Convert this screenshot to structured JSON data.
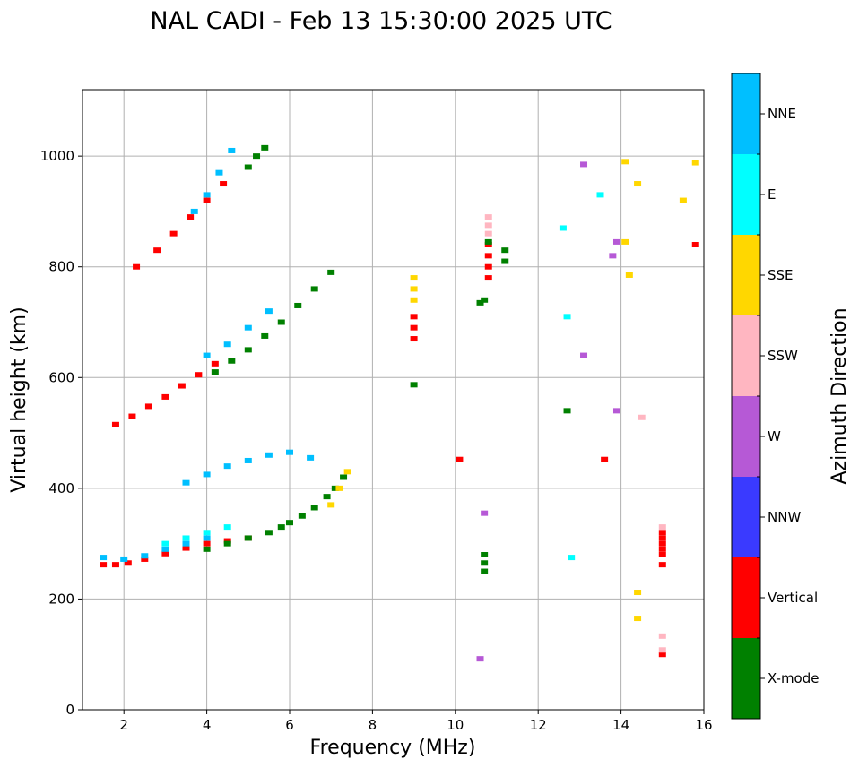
{
  "chart_data": {
    "type": "scatter",
    "title": "NAL CADI - Feb 13 15:30:00 2025 UTC",
    "xlabel": "Frequency (MHz)",
    "ylabel": "Virtual height (km)",
    "xlim": [
      1,
      16
    ],
    "ylim": [
      0,
      1120
    ],
    "xticks": [
      2,
      4,
      6,
      8,
      10,
      12,
      14,
      16
    ],
    "yticks": [
      0,
      200,
      400,
      600,
      800,
      1000
    ],
    "grid": true,
    "colorbar": {
      "label": "Azimuth Direction",
      "categories": [
        {
          "name": "X-mode",
          "color": "#008000"
        },
        {
          "name": "Vertical",
          "color": "#ff0000"
        },
        {
          "name": "NNW",
          "color": "#3a3aff"
        },
        {
          "name": "W",
          "color": "#b659d6"
        },
        {
          "name": "SSW",
          "color": "#ffb6c1"
        },
        {
          "name": "SSE",
          "color": "#ffd700"
        },
        {
          "name": "E",
          "color": "#00ffff"
        },
        {
          "name": "NNE",
          "color": "#00bfff"
        }
      ]
    },
    "traces": [
      {
        "direction": "Vertical",
        "x": [
          1.5,
          1.8,
          2.1,
          2.5,
          3.0,
          3.5,
          4.0,
          4.5,
          5.0
        ],
        "y": [
          262,
          262,
          265,
          272,
          282,
          292,
          300,
          305,
          310
        ]
      },
      {
        "direction": "X-mode",
        "x": [
          4.0,
          4.5,
          5.0,
          5.5,
          5.8,
          6.0,
          6.3,
          6.6,
          6.9,
          7.1,
          7.3
        ],
        "y": [
          290,
          300,
          310,
          320,
          330,
          338,
          350,
          365,
          385,
          400,
          420
        ]
      },
      {
        "direction": "NNE",
        "x": [
          1.5,
          2.0,
          2.5,
          3.0,
          3.5,
          4.0
        ],
        "y": [
          275,
          272,
          278,
          290,
          300,
          310
        ]
      },
      {
        "direction": "E",
        "x": [
          3.0,
          3.5,
          4.0,
          4.5
        ],
        "y": [
          300,
          310,
          320,
          330
        ]
      },
      {
        "direction": "SSE",
        "x": [
          7.0,
          7.2,
          7.4
        ],
        "y": [
          370,
          400,
          430
        ]
      },
      {
        "direction": "NNE",
        "x": [
          3.5,
          4.0,
          4.5,
          5.0,
          5.5,
          6.0,
          6.5
        ],
        "y": [
          410,
          425,
          440,
          450,
          460,
          465,
          455
        ]
      },
      {
        "direction": "Vertical",
        "x": [
          1.8,
          2.2,
          2.6,
          3.0,
          3.4,
          3.8,
          4.2
        ],
        "y": [
          515,
          530,
          548,
          565,
          585,
          605,
          625
        ]
      },
      {
        "direction": "X-mode",
        "x": [
          4.2,
          4.6,
          5.0,
          5.4,
          5.8,
          6.2,
          6.6,
          7.0
        ],
        "y": [
          610,
          630,
          650,
          675,
          700,
          730,
          760,
          790
        ]
      },
      {
        "direction": "NNE",
        "x": [
          4.0,
          4.5,
          5.0,
          5.5
        ],
        "y": [
          640,
          660,
          690,
          720
        ]
      },
      {
        "direction": "Vertical",
        "x": [
          2.3,
          2.8,
          3.2,
          3.6,
          4.0,
          4.4
        ],
        "y": [
          800,
          830,
          860,
          890,
          920,
          950
        ]
      },
      {
        "direction": "NNE",
        "x": [
          3.7,
          4.0,
          4.3,
          4.6
        ],
        "y": [
          900,
          930,
          970,
          1010
        ]
      },
      {
        "direction": "X-mode",
        "x": [
          5.0,
          5.2,
          5.4
        ],
        "y": [
          980,
          1000,
          1015
        ]
      },
      {
        "direction": "SSE",
        "x": [
          9.0,
          9.0,
          9.0
        ],
        "y": [
          740,
          760,
          780
        ]
      },
      {
        "direction": "Vertical",
        "x": [
          9.0,
          9.0,
          9.0
        ],
        "y": [
          670,
          690,
          710
        ]
      },
      {
        "direction": "X-mode",
        "x": [
          9.0,
          10.6,
          10.7
        ],
        "y": [
          587,
          735,
          740
        ]
      },
      {
        "direction": "Vertical",
        "x": [
          10.8,
          10.8,
          10.8,
          10.8
        ],
        "y": [
          780,
          800,
          820,
          840
        ]
      },
      {
        "direction": "SSW",
        "x": [
          10.8,
          10.8,
          10.8
        ],
        "y": [
          860,
          875,
          890
        ]
      },
      {
        "direction": "X-mode",
        "x": [
          10.8,
          11.2,
          11.2
        ],
        "y": [
          845,
          810,
          830
        ]
      },
      {
        "direction": "X-mode",
        "x": [
          10.7,
          10.7,
          10.7
        ],
        "y": [
          250,
          265,
          280
        ]
      },
      {
        "direction": "W",
        "x": [
          10.6,
          10.7
        ],
        "y": [
          92,
          355
        ]
      },
      {
        "direction": "Vertical",
        "x": [
          10.1
        ],
        "y": [
          452
        ]
      },
      {
        "direction": "E",
        "x": [
          12.6,
          12.7,
          12.8,
          13.5
        ],
        "y": [
          870,
          710,
          275,
          930
        ]
      },
      {
        "direction": "X-mode",
        "x": [
          12.7
        ],
        "y": [
          540
        ]
      },
      {
        "direction": "W",
        "x": [
          13.1,
          13.1,
          13.8,
          13.9,
          13.9
        ],
        "y": [
          985,
          640,
          820,
          845,
          540
        ]
      },
      {
        "direction": "Vertical",
        "x": [
          13.6
        ],
        "y": [
          452
        ]
      },
      {
        "direction": "SSE",
        "x": [
          14.1,
          14.1,
          14.2,
          14.4,
          14.4,
          14.4,
          15.5,
          15.8
        ],
        "y": [
          990,
          845,
          785,
          950,
          212,
          165,
          920,
          988
        ]
      },
      {
        "direction": "Vertical",
        "x": [
          15.0,
          15.0,
          15.0,
          15.0,
          15.0,
          15.0,
          15.0,
          15.8
        ],
        "y": [
          262,
          280,
          290,
          300,
          310,
          320,
          100,
          840
        ]
      },
      {
        "direction": "SSW",
        "x": [
          15.0,
          15.0,
          15.0,
          14.5
        ],
        "y": [
          330,
          133,
          108,
          528
        ]
      }
    ]
  }
}
